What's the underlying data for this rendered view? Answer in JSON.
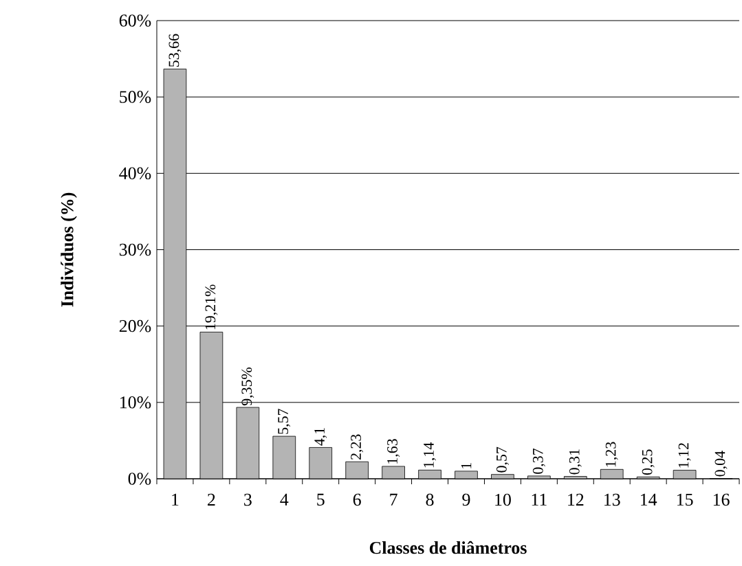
{
  "chart_data": {
    "type": "bar",
    "xlabel": "Classes de diâmetros",
    "ylabel": "Indivíduos (%)",
    "categories": [
      "1",
      "2",
      "3",
      "4",
      "5",
      "6",
      "7",
      "8",
      "9",
      "10",
      "11",
      "12",
      "13",
      "14",
      "15",
      "16"
    ],
    "values": [
      53.66,
      19.21,
      9.35,
      5.57,
      4.1,
      2.23,
      1.63,
      1.14,
      1,
      0.57,
      0.37,
      0.31,
      1.23,
      0.25,
      1.12,
      0.04
    ],
    "value_labels": [
      "53,66",
      "19,21%",
      "9,35%",
      "5,57",
      "4,1",
      "2,23",
      "1,63",
      "1,14",
      "1",
      "0,57",
      "0,37",
      "0,31",
      "1,23",
      "0,25",
      "1,12",
      "0,04"
    ],
    "color": "#b4b4b4",
    "ylim": [
      0,
      60
    ],
    "yticks": [
      {
        "value": 0,
        "label": "0%"
      },
      {
        "value": 10,
        "label": "10%"
      },
      {
        "value": 20,
        "label": "20%"
      },
      {
        "value": 30,
        "label": "30%"
      },
      {
        "value": 40,
        "label": "40%"
      },
      {
        "value": 50,
        "label": "50%"
      },
      {
        "value": 60,
        "label": "60%"
      }
    ],
    "grid": "y"
  }
}
